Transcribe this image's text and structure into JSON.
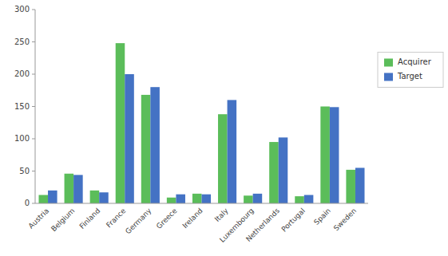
{
  "chart_data": {
    "type": "bar",
    "categories": [
      "Austria",
      "Belgium",
      "Finland",
      "France",
      "Germany",
      "Greece",
      "Ireland",
      "Italy",
      "Luxembourg",
      "Netherlands",
      "Portugal",
      "Spain",
      "Sweden"
    ],
    "series": [
      {
        "name": "Acquirer",
        "color": "#5BBD5A",
        "values": [
          13,
          46,
          20,
          248,
          168,
          9,
          15,
          138,
          12,
          95,
          11,
          150,
          52
        ]
      },
      {
        "name": "Target",
        "color": "#4472C4",
        "values": [
          20,
          44,
          17,
          200,
          180,
          14,
          14,
          160,
          15,
          102,
          13,
          149,
          55
        ]
      }
    ],
    "ylim": [
      0,
      300
    ],
    "yticks": [
      0,
      50,
      100,
      150,
      200,
      250,
      300
    ],
    "grid": false,
    "legend": "right"
  }
}
